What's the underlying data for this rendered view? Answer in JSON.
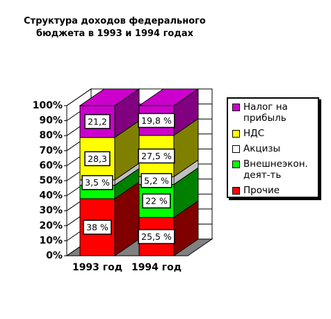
{
  "chart_data": {
    "type": "bar3d_stacked",
    "title": "Структура доходов федерального бюджета в 1993 и 1994 годах",
    "categories": [
      "1993 год",
      "1994 год"
    ],
    "series": [
      {
        "name": "Прочие",
        "color": "#ff0000",
        "side": "#800000",
        "values": [
          38,
          25.5
        ],
        "value_labels": [
          "38 %",
          "25,5 %"
        ]
      },
      {
        "name": "Внешнеэкон. деят-ть",
        "color": "#00ff00",
        "side": "#008000",
        "values": [
          9,
          22
        ],
        "value_labels": [
          null,
          "22 %"
        ]
      },
      {
        "name": "Акцизы",
        "color": "#ffffff",
        "side": "#c0c0c0",
        "values": [
          3.5,
          5.2
        ],
        "value_labels": [
          "3,5 %",
          "5,2 %"
        ]
      },
      {
        "name": "НДС",
        "color": "#ffff00",
        "side": "#808000",
        "values": [
          28.3,
          27.5
        ],
        "value_labels": [
          "28,3",
          "27,5 %"
        ]
      },
      {
        "name": "Налог на прибыль",
        "color": "#cc00cc",
        "side": "#800080",
        "values": [
          21.2,
          19.8
        ],
        "value_labels": [
          "21,2",
          "19,8 %"
        ]
      }
    ],
    "ylim": [
      0,
      100
    ],
    "yticks": [
      {
        "value": 0,
        "label": "0%"
      },
      {
        "value": 10,
        "label": "10%"
      },
      {
        "value": 20,
        "label": "20%"
      },
      {
        "value": 30,
        "label": "30%"
      },
      {
        "value": 40,
        "label": "40%"
      },
      {
        "value": 50,
        "label": "50%"
      },
      {
        "value": 60,
        "label": "60%"
      },
      {
        "value": 70,
        "label": "70%"
      },
      {
        "value": 80,
        "label": "80%"
      },
      {
        "value": 90,
        "label": "90%"
      },
      {
        "value": 100,
        "label": "100%"
      }
    ],
    "grid": true
  }
}
